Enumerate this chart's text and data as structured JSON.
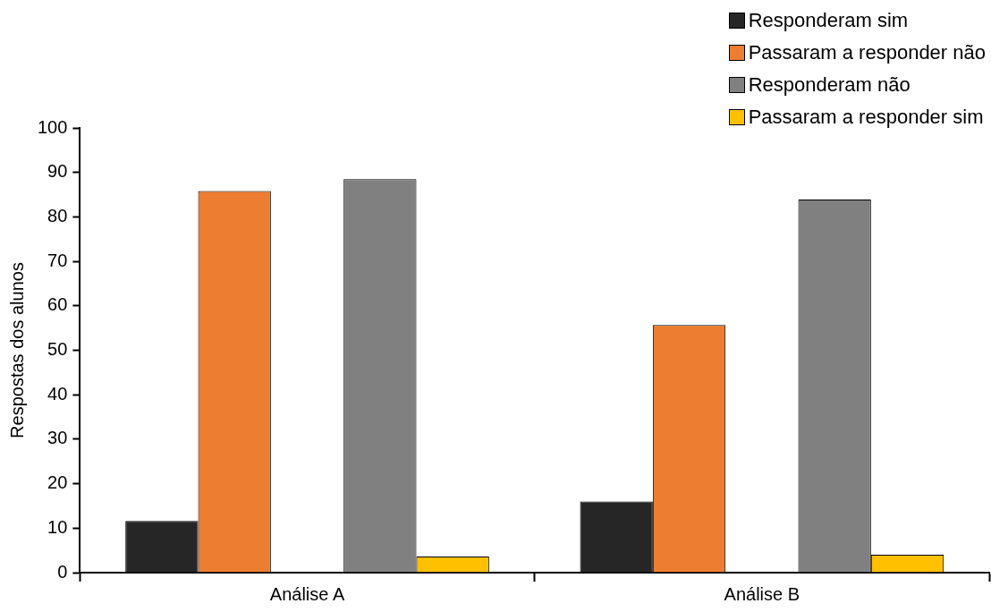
{
  "chart_data": {
    "type": "bar",
    "ylabel": "Respostas dos alunos",
    "categories": [
      "Análise A",
      "Análise B"
    ],
    "series": [
      {
        "name": "Responderam sim",
        "color": "#262626",
        "values": [
          11.6,
          16
        ]
      },
      {
        "name": "Passaram a responder não",
        "color": "#ed7d31",
        "values": [
          85.8,
          55.7
        ]
      },
      {
        "name": "Responderam não",
        "color": "#808080",
        "values": [
          88.5,
          83.9
        ]
      },
      {
        "name": "Passaram a responder sim",
        "color": "#ffc000",
        "values": [
          3.6,
          4
        ]
      }
    ],
    "ylim": [
      0,
      100
    ],
    "yticks": [
      0,
      10,
      20,
      30,
      40,
      50,
      60,
      70,
      80,
      90,
      100
    ],
    "grid": false,
    "legend": "top right"
  }
}
